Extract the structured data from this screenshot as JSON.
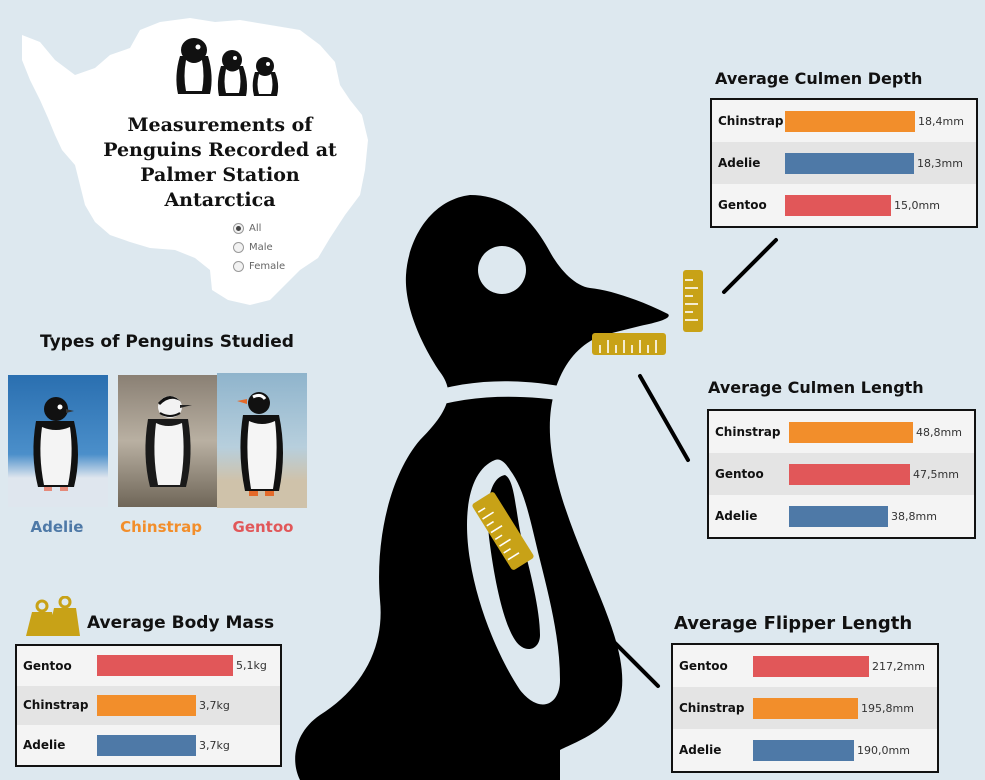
{
  "colors": {
    "Adelie": "#4e79a7",
    "Chinstrap": "#f28e2b",
    "Gentoo": "#e15759",
    "ruler": "#c8a217",
    "background": "#dde8ef"
  },
  "header": {
    "title_lines": [
      "Measurements of",
      "Penguins Recorded at",
      "Palmer Station",
      "Antarctica"
    ]
  },
  "filter": {
    "options": [
      {
        "label": "All",
        "selected": true
      },
      {
        "label": "Male",
        "selected": false
      },
      {
        "label": "Female",
        "selected": false
      }
    ]
  },
  "types": {
    "heading": "Types of Penguins Studied",
    "species": [
      "Adelie",
      "Chinstrap",
      "Gentoo"
    ]
  },
  "chart_data": [
    {
      "type": "bar",
      "title": "Average Culmen Depth",
      "categories": [
        "Chinstrap",
        "Adelie",
        "Gentoo"
      ],
      "values": [
        18.4,
        18.3,
        15.0
      ],
      "labels": [
        "18,4mm",
        "18,3mm",
        "15,0mm"
      ],
      "unit": "mm",
      "xlim": [
        0,
        18.4
      ]
    },
    {
      "type": "bar",
      "title": "Average Culmen Length",
      "categories": [
        "Chinstrap",
        "Gentoo",
        "Adelie"
      ],
      "values": [
        48.8,
        47.5,
        38.8
      ],
      "labels": [
        "48,8mm",
        "47,5mm",
        "38,8mm"
      ],
      "unit": "mm",
      "xlim": [
        0,
        48.8
      ]
    },
    {
      "type": "bar",
      "title": "Average Flipper Length",
      "categories": [
        "Gentoo",
        "Chinstrap",
        "Adelie"
      ],
      "values": [
        217.2,
        195.8,
        190.0
      ],
      "labels": [
        "217,2mm",
        "195,8mm",
        "190,0mm"
      ],
      "unit": "mm",
      "xlim": [
        0,
        217.2
      ]
    },
    {
      "type": "bar",
      "title": "Average Body Mass",
      "categories": [
        "Gentoo",
        "Chinstrap",
        "Adelie"
      ],
      "values": [
        5.1,
        3.7,
        3.7
      ],
      "labels": [
        "5,1kg",
        "3,7kg",
        "3,7kg"
      ],
      "unit": "kg",
      "xlim": [
        0,
        5.1
      ]
    }
  ]
}
